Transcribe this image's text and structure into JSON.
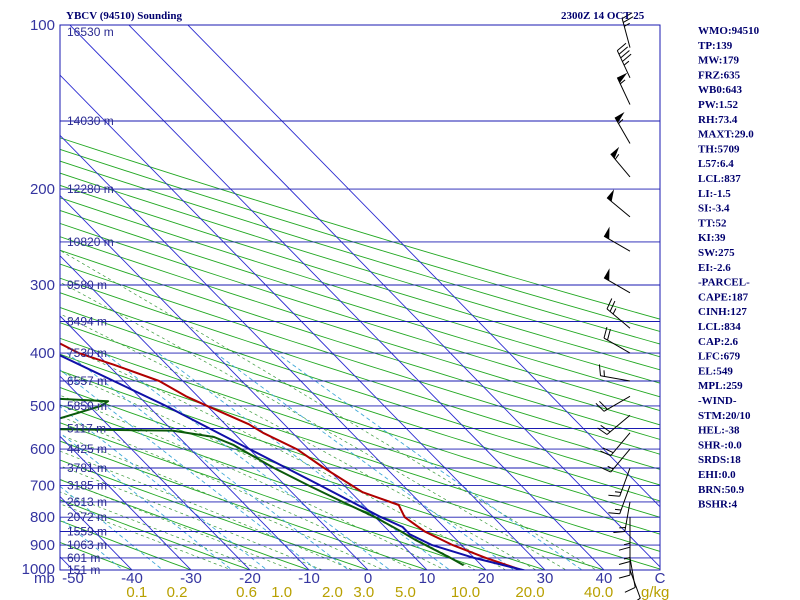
{
  "header": {
    "station_title": "YBCV (94510) Sounding",
    "datetime": "2300Z 14 OCT 25"
  },
  "chart_data": {
    "type": "skew-t",
    "pressure_range_mb": [
      100,
      1000
    ],
    "temperature_range_c": [
      -50,
      50
    ],
    "pressure_unit_label": "mb",
    "pressure_ticks": [
      "100",
      "200",
      "300",
      "400",
      "500",
      "600",
      "700",
      "800",
      "900",
      "1000"
    ],
    "temperature_ticks": [
      "-50",
      "-40",
      "-30",
      "-20",
      "-10",
      "0",
      "10",
      "20",
      "30",
      "40",
      "C"
    ],
    "mixing_ratio_unit": "g/kg",
    "mixing_ratio_ticks": [
      "0.1",
      "0.2",
      "0.6",
      "1.0",
      "2.0",
      "3.0",
      "5.0",
      "10.0",
      "20.0",
      "40.0"
    ],
    "height_levels": [
      {
        "p": 103,
        "label": "16530 m"
      },
      {
        "p": 150,
        "label": "14030 m"
      },
      {
        "p": 200,
        "label": "12280 m"
      },
      {
        "p": 250,
        "label": "10820 m"
      },
      {
        "p": 300,
        "label": "9580 m"
      },
      {
        "p": 350,
        "label": "8494 m"
      },
      {
        "p": 400,
        "label": "7530 m"
      },
      {
        "p": 450,
        "label": "6557 m"
      },
      {
        "p": 500,
        "label": "5850 m"
      },
      {
        "p": 550,
        "label": "5117 m"
      },
      {
        "p": 600,
        "label": "4425 m"
      },
      {
        "p": 650,
        "label": "3781 m"
      },
      {
        "p": 700,
        "label": "3185 m"
      },
      {
        "p": 750,
        "label": "2613 m"
      },
      {
        "p": 800,
        "label": "2072 m"
      },
      {
        "p": 850,
        "label": "1559 m"
      },
      {
        "p": 900,
        "label": "1063 m"
      },
      {
        "p": 950,
        "label": "601 m"
      },
      {
        "p": 1000,
        "label": "151 m"
      }
    ],
    "series": [
      {
        "key": "temperature",
        "color": "#b00000",
        "points": [
          {
            "p": 1010,
            "t": 27.5
          },
          {
            "p": 1000,
            "t": 26
          },
          {
            "p": 950,
            "t": 22
          },
          {
            "p": 900,
            "t": 18.5
          },
          {
            "p": 850,
            "t": 16
          },
          {
            "p": 800,
            "t": 15
          },
          {
            "p": 760,
            "t": 16
          },
          {
            "p": 720,
            "t": 12
          },
          {
            "p": 650,
            "t": 9.5
          },
          {
            "p": 600,
            "t": 8
          },
          {
            "p": 560,
            "t": 5
          },
          {
            "p": 540,
            "t": 4
          },
          {
            "p": 500,
            "t": 0
          },
          {
            "p": 480,
            "t": -2
          },
          {
            "p": 450,
            "t": -4
          },
          {
            "p": 420,
            "t": -9
          },
          {
            "p": 400,
            "t": -13
          },
          {
            "p": 380,
            "t": -15
          },
          {
            "p": 360,
            "t": -15
          },
          {
            "p": 320,
            "t": -19
          },
          {
            "p": 300,
            "t": -23
          },
          {
            "p": 270,
            "t": -29
          },
          {
            "p": 250,
            "t": -33
          },
          {
            "p": 230,
            "t": -38
          },
          {
            "p": 200,
            "t": -45
          },
          {
            "p": 180,
            "t": -50
          },
          {
            "p": 160,
            "t": -57
          },
          {
            "p": 150,
            "t": -61
          },
          {
            "p": 140,
            "t": -65
          },
          {
            "p": 130,
            "t": -69
          },
          {
            "p": 120,
            "t": -70
          },
          {
            "p": 110,
            "t": -72
          },
          {
            "p": 100,
            "t": -77
          }
        ]
      },
      {
        "key": "dewpoint",
        "color": "#0b5a0b",
        "points": [
          {
            "p": 980,
            "t": 17
          },
          {
            "p": 950,
            "t": 16
          },
          {
            "p": 880,
            "t": 13
          },
          {
            "p": 850,
            "t": 12
          },
          {
            "p": 800,
            "t": 10
          },
          {
            "p": 750,
            "t": 7
          },
          {
            "p": 700,
            "t": 4
          },
          {
            "p": 650,
            "t": 1
          },
          {
            "p": 590,
            "t": -2
          },
          {
            "p": 570,
            "t": -4
          },
          {
            "p": 555,
            "t": -10
          },
          {
            "p": 550,
            "t": -40
          },
          {
            "p": 530,
            "t": -28
          },
          {
            "p": 500,
            "t": -18
          },
          {
            "p": 490,
            "t": -16
          },
          {
            "p": 470,
            "t": -49
          },
          {
            "p": 440,
            "t": -44
          },
          {
            "p": 400,
            "t": -28
          },
          {
            "p": 380,
            "t": -28
          },
          {
            "p": 360,
            "t": -50
          },
          {
            "p": 340,
            "t": -35
          },
          {
            "p": 320,
            "t": -48
          },
          {
            "p": 300,
            "t": -61
          },
          {
            "p": 270,
            "t": -56
          },
          {
            "p": 255,
            "t": -50
          },
          {
            "p": 250,
            "t": -54
          },
          {
            "p": 230,
            "t": -63
          },
          {
            "p": 200,
            "t": -74
          },
          {
            "p": 180,
            "t": -81
          },
          {
            "p": 160,
            "t": -86
          },
          {
            "p": 140,
            "t": -87
          },
          {
            "p": 125,
            "t": -83
          },
          {
            "p": 115,
            "t": -84
          },
          {
            "p": 105,
            "t": -80
          },
          {
            "p": 100,
            "t": -76
          }
        ]
      },
      {
        "key": "parcel",
        "color": "#1010a8",
        "points": [
          {
            "p": 1010,
            "t": 27.5
          },
          {
            "p": 950,
            "t": 20
          },
          {
            "p": 900,
            "t": 15
          },
          {
            "p": 860,
            "t": 13
          },
          {
            "p": 834,
            "t": 13
          },
          {
            "p": 800,
            "t": 11
          },
          {
            "p": 700,
            "t": 6
          },
          {
            "p": 600,
            "t": 0
          },
          {
            "p": 500,
            "t": -7
          },
          {
            "p": 400,
            "t": -17
          },
          {
            "p": 300,
            "t": -33
          },
          {
            "p": 250,
            "t": -43
          },
          {
            "p": 200,
            "t": -57
          },
          {
            "p": 150,
            "t": -77
          },
          {
            "p": 120,
            "t": -93
          }
        ]
      }
    ],
    "wind_barbs": [
      {
        "p": 110,
        "dir": 345,
        "kt": 25
      },
      {
        "p": 125,
        "dir": 335,
        "kt": 45
      },
      {
        "p": 140,
        "dir": 335,
        "kt": 55
      },
      {
        "p": 165,
        "dir": 330,
        "kt": 55
      },
      {
        "p": 190,
        "dir": 320,
        "kt": 55
      },
      {
        "p": 225,
        "dir": 310,
        "kt": 50
      },
      {
        "p": 260,
        "dir": 300,
        "kt": 50
      },
      {
        "p": 310,
        "dir": 300,
        "kt": 50
      },
      {
        "p": 360,
        "dir": 310,
        "kt": 25
      },
      {
        "p": 400,
        "dir": 300,
        "kt": 20
      },
      {
        "p": 450,
        "dir": 280,
        "kt": 15
      },
      {
        "p": 480,
        "dir": 240,
        "kt": 20
      },
      {
        "p": 520,
        "dir": 230,
        "kt": 20
      },
      {
        "p": 560,
        "dir": 220,
        "kt": 20
      },
      {
        "p": 600,
        "dir": 220,
        "kt": 15
      },
      {
        "p": 650,
        "dir": 200,
        "kt": 15
      },
      {
        "p": 700,
        "dir": 200,
        "kt": 15
      },
      {
        "p": 750,
        "dir": 190,
        "kt": 15
      },
      {
        "p": 800,
        "dir": 180,
        "kt": 15
      },
      {
        "p": 850,
        "dir": 180,
        "kt": 15
      },
      {
        "p": 900,
        "dir": 180,
        "kt": 10
      },
      {
        "p": 950,
        "dir": 170,
        "kt": 10
      },
      {
        "p": 1000,
        "dir": 160,
        "kt": 5
      }
    ]
  },
  "indices": [
    "WMO:94510",
    "TP:139",
    "MW:179",
    "FRZ:635",
    "WB0:643",
    "PW:1.52",
    "RH:73.4",
    "MAXT:29.0",
    "TH:5709",
    "L57:6.4",
    "LCL:837",
    "LI:-1.5",
    "SI:-3.4",
    "TT:52",
    "KI:39",
    "SW:275",
    "EI:-2.6",
    "-PARCEL-",
    "CAPE:187",
    "CINH:127",
    "LCL:834",
    "CAP:2.6",
    "LFC:679",
    "EL:549",
    "MPL:259",
    "-WIND-",
    "STM:20/10",
    "HEL:-38",
    "SHR-:0.0",
    "SRDS:18",
    "EHI:0.0",
    "BRN:50.9",
    "BSHR:4"
  ],
  "colors": {
    "isobar": "#1a1ab0",
    "isotherm": "#2a2ad0",
    "dry_adiabat": "#22a822",
    "moist_adiabat": "#3a9a3a",
    "mixing_ratio": "#40a8d8",
    "ratio_text": "#b8a000"
  }
}
